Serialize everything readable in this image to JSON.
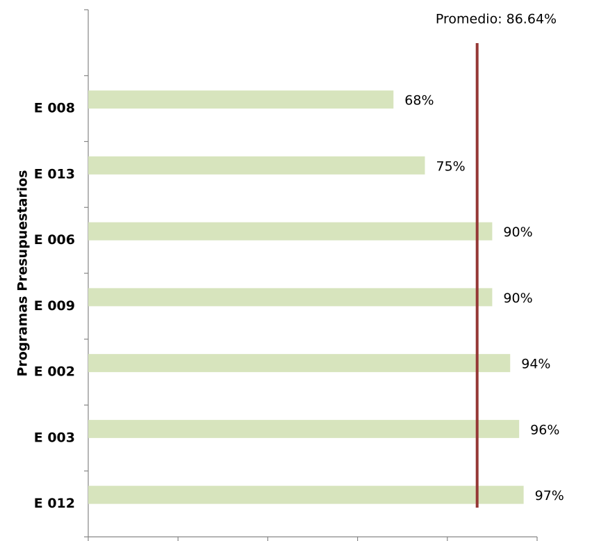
{
  "chart_data": {
    "type": "bar",
    "orientation": "horizontal",
    "y_axis_label": "Programas Presupuestarios",
    "categories": [
      "E 008",
      "E 013",
      "E 006",
      "E 009",
      "E 002",
      "E 003",
      "E 012"
    ],
    "values": [
      68,
      75,
      90,
      90,
      94,
      96,
      97
    ],
    "value_labels": [
      "68%",
      "75%",
      "90%",
      "90%",
      "94%",
      "96%",
      "97%"
    ],
    "color": "#d7e4bd",
    "xlim": [
      0,
      100
    ],
    "xticks": [
      0,
      20,
      40,
      60,
      80,
      100
    ],
    "reference_line": {
      "value": 86.64,
      "label": "Promedio: 86.64%",
      "color": "#953735"
    }
  }
}
